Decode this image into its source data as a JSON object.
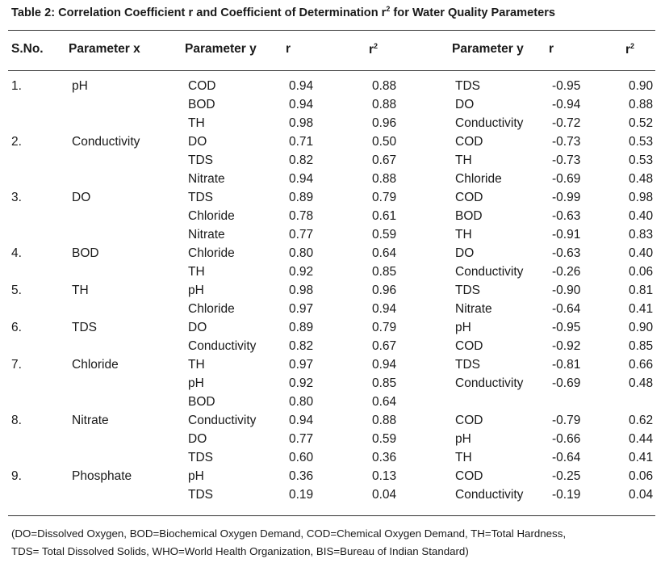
{
  "title": {
    "prefix": "Table 2: Correlation Coefficient r and Coefficient of Determination r",
    "sup": "2",
    "suffix": " for Water Quality Parameters"
  },
  "headers": {
    "sno": "S.No.",
    "param_x": "Parameter x",
    "param_y_left": "Parameter y",
    "r_left": "r",
    "r2_left_base": "r",
    "r2_left_sup": "2",
    "param_y_right": "Parameter y",
    "r_right": "r",
    "r2_right_base": "r",
    "r2_right_sup": "2"
  },
  "rows": [
    {
      "sno": "1.",
      "x": "pH",
      "y1": "COD",
      "r1": "0.94",
      "r21": "0.88",
      "y2": "TDS",
      "r2": "-0.95",
      "r22": "0.90"
    },
    {
      "sno": "",
      "x": "",
      "y1": "BOD",
      "r1": "0.94",
      "r21": "0.88",
      "y2": "DO",
      "r2": "-0.94",
      "r22": "0.88"
    },
    {
      "sno": "",
      "x": "",
      "y1": "TH",
      "r1": "0.98",
      "r21": "0.96",
      "y2": "Conductivity",
      "r2": "-0.72",
      "r22": "0.52"
    },
    {
      "sno": "2.",
      "x": "Conductivity",
      "y1": "DO",
      "r1": "0.71",
      "r21": "0.50",
      "y2": "COD",
      "r2": "-0.73",
      "r22": "0.53"
    },
    {
      "sno": "",
      "x": "",
      "y1": "TDS",
      "r1": "0.82",
      "r21": "0.67",
      "y2": "TH",
      "r2": "-0.73",
      "r22": "0.53"
    },
    {
      "sno": "",
      "x": "",
      "y1": "Nitrate",
      "r1": "0.94",
      "r21": "0.88",
      "y2": "Chloride",
      "r2": "-0.69",
      "r22": "0.48"
    },
    {
      "sno": "3.",
      "x": "DO",
      "y1": "TDS",
      "r1": "0.89",
      "r21": "0.79",
      "y2": "COD",
      "r2": "-0.99",
      "r22": "0.98"
    },
    {
      "sno": "",
      "x": "",
      "y1": "Chloride",
      "r1": "0.78",
      "r21": "0.61",
      "y2": "BOD",
      "r2": "-0.63",
      "r22": "0.40"
    },
    {
      "sno": "",
      "x": "",
      "y1": "Nitrate",
      "r1": "0.77",
      "r21": "0.59",
      "y2": "TH",
      "r2": "-0.91",
      "r22": "0.83"
    },
    {
      "sno": "4.",
      "x": "BOD",
      "y1": "Chloride",
      "r1": "0.80",
      "r21": "0.64",
      "y2": "DO",
      "r2": "-0.63",
      "r22": "0.40"
    },
    {
      "sno": "",
      "x": "",
      "y1": "TH",
      "r1": "0.92",
      "r21": "0.85",
      "y2": "Conductivity",
      "r2": "-0.26",
      "r22": "0.06"
    },
    {
      "sno": "5.",
      "x": "TH",
      "y1": "pH",
      "r1": "0.98",
      "r21": "0.96",
      "y2": "TDS",
      "r2": "-0.90",
      "r22": "0.81"
    },
    {
      "sno": "",
      "x": "",
      "y1": "Chloride",
      "r1": "0.97",
      "r21": "0.94",
      "y2": "Nitrate",
      "r2": "-0.64",
      "r22": "0.41"
    },
    {
      "sno": "6.",
      "x": "TDS",
      "y1": "DO",
      "r1": "0.89",
      "r21": "0.79",
      "y2": "pH",
      "r2": "-0.95",
      "r22": "0.90"
    },
    {
      "sno": "",
      "x": "",
      "y1": "Conductivity",
      "r1": "0.82",
      "r21": "0.67",
      "y2": "COD",
      "r2": "-0.92",
      "r22": "0.85"
    },
    {
      "sno": "7.",
      "x": "Chloride",
      "y1": "TH",
      "r1": "0.97",
      "r21": "0.94",
      "y2": "TDS",
      "r2": "-0.81",
      "r22": "0.66"
    },
    {
      "sno": "",
      "x": "",
      "y1": "pH",
      "r1": "0.92",
      "r21": "0.85",
      "y2": "Conductivity",
      "r2": "-0.69",
      "r22": "0.48"
    },
    {
      "sno": "",
      "x": "",
      "y1": "BOD",
      "r1": "0.80",
      "r21": "0.64",
      "y2": "",
      "r2": "",
      "r22": ""
    },
    {
      "sno": "8.",
      "x": "Nitrate",
      "y1": "Conductivity",
      "r1": "0.94",
      "r21": "0.88",
      "y2": "COD",
      "r2": "-0.79",
      "r22": "0.62"
    },
    {
      "sno": "",
      "x": "",
      "y1": "DO",
      "r1": "0.77",
      "r21": "0.59",
      "y2": "pH",
      "r2": "-0.66",
      "r22": "0.44"
    },
    {
      "sno": "",
      "x": "",
      "y1": "TDS",
      "r1": "0.60",
      "r21": "0.36",
      "y2": "TH",
      "r2": "-0.64",
      "r22": "0.41"
    },
    {
      "sno": "9.",
      "x": "Phosphate",
      "y1": "pH",
      "r1": "0.36",
      "r21": "0.13",
      "y2": "COD",
      "r2": "-0.25",
      "r22": "0.06"
    },
    {
      "sno": "",
      "x": "",
      "y1": "TDS",
      "r1": "0.19",
      "r21": "0.04",
      "y2": "Conductivity",
      "r2": "-0.19",
      "r22": "0.04"
    }
  ],
  "footnote": {
    "line1": "(DO=Dissolved Oxygen, BOD=Biochemical Oxygen Demand, COD=Chemical Oxygen Demand, TH=Total Hardness,",
    "line2": "TDS= Total Dissolved Solids, WHO=World Health Organization, BIS=Bureau of Indian Standard)"
  }
}
